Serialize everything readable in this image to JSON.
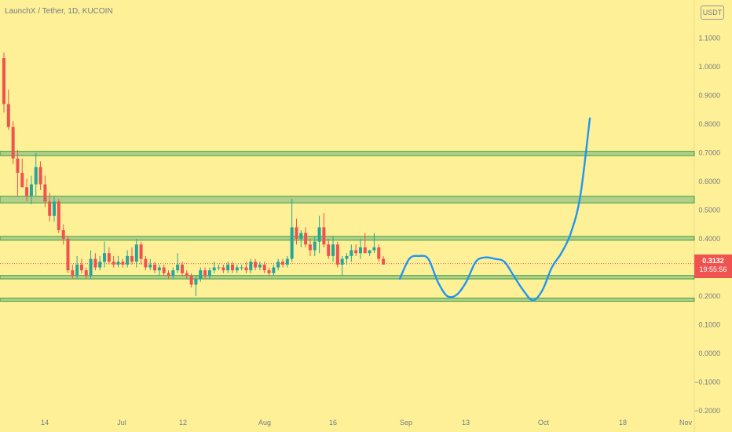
{
  "header": {
    "title": "LaunchX / Tether, 1D, KUCOIN"
  },
  "toolbar": {
    "currency_badge": "USDT"
  },
  "last_price": {
    "value": "0.3132",
    "countdown": "19:55:56"
  },
  "colors": {
    "background": "#fdf096",
    "up_candle": "#26a69a",
    "down_candle": "#ef5350",
    "zone_fill": "#a5c88a",
    "zone_edge": "#3e9e3e",
    "projection": "#2196f3",
    "axis_text": "#787b86"
  },
  "chart_data": {
    "type": "candlestick",
    "title": "LaunchX / Tether, 1D, KUCOIN",
    "y_axis": {
      "ticks": [
        "1.1000",
        "1.0000",
        "0.9000",
        "0.8000",
        "0.7000",
        "0.6000",
        "0.5000",
        "0.4000",
        "0.3000",
        "0.2000",
        "0.1000",
        "0.0000",
        "−0.1000",
        "−0.2000"
      ],
      "range": [
        -0.2,
        1.2
      ]
    },
    "x_axis": {
      "ticks": [
        "14",
        "Jul",
        "12",
        "Aug",
        "16",
        "Sep",
        "13",
        "Oct",
        "18",
        "Nov"
      ]
    },
    "support_resistance_zones": [
      {
        "low": 0.69,
        "high": 0.705
      },
      {
        "low": 0.525,
        "high": 0.548
      },
      {
        "low": 0.395,
        "high": 0.408
      },
      {
        "low": 0.26,
        "high": 0.272
      },
      {
        "low": 0.182,
        "high": 0.193
      }
    ],
    "candles": [
      [
        1.03,
        1.05,
        0.84,
        0.87
      ],
      [
        0.87,
        0.92,
        0.78,
        0.79
      ],
      [
        0.79,
        0.81,
        0.66,
        0.68
      ],
      [
        0.68,
        0.71,
        0.55,
        0.63
      ],
      [
        0.63,
        0.68,
        0.58,
        0.58
      ],
      [
        0.58,
        0.61,
        0.53,
        0.55
      ],
      [
        0.55,
        0.62,
        0.52,
        0.59
      ],
      [
        0.59,
        0.7,
        0.55,
        0.65
      ],
      [
        0.65,
        0.67,
        0.57,
        0.59
      ],
      [
        0.59,
        0.62,
        0.51,
        0.53
      ],
      [
        0.53,
        0.56,
        0.46,
        0.48
      ],
      [
        0.48,
        0.55,
        0.46,
        0.53
      ],
      [
        0.53,
        0.54,
        0.42,
        0.43
      ],
      [
        0.43,
        0.45,
        0.38,
        0.4
      ],
      [
        0.4,
        0.41,
        0.28,
        0.29
      ],
      [
        0.29,
        0.31,
        0.26,
        0.27
      ],
      [
        0.27,
        0.34,
        0.26,
        0.31
      ],
      [
        0.31,
        0.33,
        0.28,
        0.29
      ],
      [
        0.29,
        0.3,
        0.26,
        0.27
      ],
      [
        0.27,
        0.36,
        0.26,
        0.33
      ],
      [
        0.33,
        0.35,
        0.29,
        0.3
      ],
      [
        0.3,
        0.34,
        0.29,
        0.32
      ],
      [
        0.32,
        0.39,
        0.3,
        0.35
      ],
      [
        0.35,
        0.37,
        0.31,
        0.32
      ],
      [
        0.32,
        0.34,
        0.3,
        0.31
      ],
      [
        0.31,
        0.34,
        0.3,
        0.32
      ],
      [
        0.32,
        0.33,
        0.3,
        0.31
      ],
      [
        0.31,
        0.36,
        0.3,
        0.34
      ],
      [
        0.34,
        0.37,
        0.31,
        0.32
      ],
      [
        0.32,
        0.4,
        0.3,
        0.38
      ],
      [
        0.38,
        0.39,
        0.31,
        0.33
      ],
      [
        0.33,
        0.34,
        0.29,
        0.3
      ],
      [
        0.3,
        0.33,
        0.29,
        0.31
      ],
      [
        0.31,
        0.32,
        0.28,
        0.29
      ],
      [
        0.29,
        0.31,
        0.27,
        0.3
      ],
      [
        0.3,
        0.31,
        0.27,
        0.28
      ],
      [
        0.28,
        0.29,
        0.26,
        0.27
      ],
      [
        0.27,
        0.3,
        0.26,
        0.29
      ],
      [
        0.29,
        0.35,
        0.28,
        0.31
      ],
      [
        0.31,
        0.32,
        0.27,
        0.28
      ],
      [
        0.28,
        0.29,
        0.26,
        0.27
      ],
      [
        0.27,
        0.28,
        0.23,
        0.24
      ],
      [
        0.24,
        0.27,
        0.2,
        0.26
      ],
      [
        0.26,
        0.3,
        0.25,
        0.29
      ],
      [
        0.29,
        0.3,
        0.26,
        0.27
      ],
      [
        0.27,
        0.3,
        0.26,
        0.29
      ],
      [
        0.29,
        0.32,
        0.28,
        0.3
      ],
      [
        0.3,
        0.31,
        0.29,
        0.3
      ],
      [
        0.3,
        0.31,
        0.28,
        0.29
      ],
      [
        0.29,
        0.32,
        0.28,
        0.31
      ],
      [
        0.31,
        0.32,
        0.28,
        0.29
      ],
      [
        0.29,
        0.31,
        0.28,
        0.3
      ],
      [
        0.3,
        0.31,
        0.29,
        0.3
      ],
      [
        0.3,
        0.32,
        0.28,
        0.29
      ],
      [
        0.29,
        0.33,
        0.28,
        0.32
      ],
      [
        0.32,
        0.33,
        0.29,
        0.3
      ],
      [
        0.3,
        0.32,
        0.29,
        0.31
      ],
      [
        0.31,
        0.32,
        0.28,
        0.29
      ],
      [
        0.29,
        0.3,
        0.27,
        0.28
      ],
      [
        0.28,
        0.31,
        0.27,
        0.3
      ],
      [
        0.3,
        0.33,
        0.29,
        0.32
      ],
      [
        0.32,
        0.33,
        0.3,
        0.31
      ],
      [
        0.31,
        0.34,
        0.3,
        0.33
      ],
      [
        0.33,
        0.54,
        0.32,
        0.44
      ],
      [
        0.44,
        0.47,
        0.38,
        0.4
      ],
      [
        0.4,
        0.43,
        0.37,
        0.42
      ],
      [
        0.42,
        0.44,
        0.37,
        0.38
      ],
      [
        0.38,
        0.4,
        0.34,
        0.36
      ],
      [
        0.36,
        0.41,
        0.34,
        0.39
      ],
      [
        0.39,
        0.48,
        0.35,
        0.44
      ],
      [
        0.44,
        0.49,
        0.37,
        0.38
      ],
      [
        0.38,
        0.4,
        0.33,
        0.34
      ],
      [
        0.34,
        0.41,
        0.32,
        0.38
      ],
      [
        0.38,
        0.39,
        0.3,
        0.31
      ],
      [
        0.31,
        0.34,
        0.27,
        0.33
      ],
      [
        0.33,
        0.35,
        0.31,
        0.34
      ],
      [
        0.34,
        0.38,
        0.32,
        0.36
      ],
      [
        0.36,
        0.38,
        0.34,
        0.35
      ],
      [
        0.35,
        0.4,
        0.33,
        0.37
      ],
      [
        0.37,
        0.42,
        0.35,
        0.35
      ],
      [
        0.35,
        0.36,
        0.34,
        0.36
      ],
      [
        0.36,
        0.42,
        0.35,
        0.37
      ],
      [
        0.37,
        0.38,
        0.32,
        0.33
      ],
      [
        0.33,
        0.34,
        0.31,
        0.31
      ]
    ],
    "projection": [
      [
        0.26,
        0.33,
        0.34,
        0.33,
        0.25,
        0.2,
        0.205,
        0.25,
        0.32,
        0.335,
        0.33,
        0.32,
        0.27,
        0.22,
        0.185,
        0.22,
        0.3,
        0.35,
        0.42,
        0.55,
        0.82
      ]
    ],
    "last_price_line": 0.3132
  }
}
